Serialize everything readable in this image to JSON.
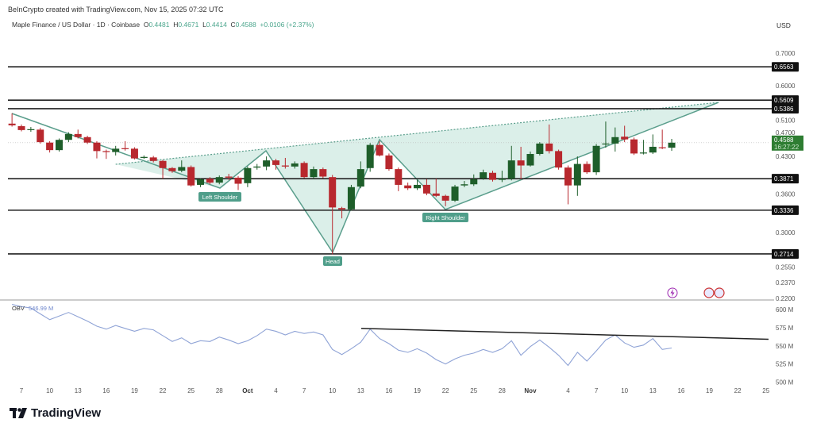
{
  "header": {
    "credit": "BeInCrypto created with TradingView.com, Nov 15, 2025 07:32 UTC",
    "symbol": "Maple Finance / US Dollar · 1D · Coinbase",
    "o_label": "O",
    "o": "0.4481",
    "h_label": "H",
    "h": "0.4671",
    "l_label": "L",
    "l": "0.4414",
    "c_label": "C",
    "c": "0.4588",
    "change": "+0.0106 (+2.37%)",
    "currency": "USD"
  },
  "footer": {
    "brand": "TradingView"
  },
  "colors": {
    "up": "#1e5e2a",
    "down": "#b8282e",
    "pattern": "#5a9e8c",
    "pattern_fill": "#cfe9e1",
    "obv": "#8fa3d6",
    "last_price_bg": "#2e7d32"
  },
  "icons": [
    "lightning-event-icon",
    "us-flag-icon",
    "us-flag-icon"
  ],
  "chart_data": [
    {
      "type": "candlestick",
      "scale": "log",
      "ylim": [
        0.22,
        0.72
      ],
      "y_ticks": [
        "0.7000",
        "0.6000",
        "0.5100",
        "0.4700",
        "0.4300",
        "0.3600",
        "0.3000",
        "0.2550",
        "0.2370",
        "0.2200"
      ],
      "x_ticks": [
        "7",
        "10",
        "13",
        "16",
        "19",
        "22",
        "25",
        "28",
        "Oct",
        "4",
        "7",
        "10",
        "13",
        "16",
        "19",
        "22",
        "25",
        "28",
        "Nov",
        "4",
        "7",
        "10",
        "13",
        "16",
        "19",
        "22",
        "25"
      ],
      "x_start": "2025-09-06",
      "x_end": "2025-11-15",
      "last_price": "0.4588",
      "countdown": "16:27:22",
      "horizontal_levels": [
        "0.6563",
        "0.5609",
        "0.5386",
        "0.3871",
        "0.3336",
        "0.2714"
      ],
      "pattern_labels": {
        "left_shoulder": "Left Shoulder",
        "head": "Head",
        "right_shoulder": "Right Shoulder"
      },
      "ohlc": [
        [
          0.502,
          0.527,
          0.495,
          0.498
        ],
        [
          0.496,
          0.5,
          0.484,
          0.487
        ],
        [
          0.487,
          0.494,
          0.483,
          0.489
        ],
        [
          0.488,
          0.492,
          0.457,
          0.46
        ],
        [
          0.459,
          0.462,
          0.438,
          0.443
        ],
        [
          0.443,
          0.468,
          0.44,
          0.465
        ],
        [
          0.465,
          0.482,
          0.46,
          0.478
        ],
        [
          0.478,
          0.488,
          0.468,
          0.471
        ],
        [
          0.471,
          0.474,
          0.456,
          0.459
        ],
        [
          0.459,
          0.462,
          0.426,
          0.441
        ],
        [
          0.441,
          0.444,
          0.425,
          0.439
        ],
        [
          0.439,
          0.452,
          0.432,
          0.446
        ],
        [
          0.447,
          0.462,
          0.442,
          0.445
        ],
        [
          0.446,
          0.449,
          0.424,
          0.426
        ],
        [
          0.427,
          0.432,
          0.425,
          0.429
        ],
        [
          0.428,
          0.431,
          0.418,
          0.421
        ],
        [
          0.421,
          0.423,
          0.387,
          0.407
        ],
        [
          0.407,
          0.409,
          0.398,
          0.401
        ],
        [
          0.402,
          0.422,
          0.399,
          0.409
        ],
        [
          0.409,
          0.412,
          0.373,
          0.375
        ],
        [
          0.376,
          0.388,
          0.372,
          0.386
        ],
        [
          0.387,
          0.39,
          0.377,
          0.38
        ],
        [
          0.38,
          0.393,
          0.377,
          0.39
        ],
        [
          0.391,
          0.396,
          0.385,
          0.389
        ],
        [
          0.389,
          0.392,
          0.367,
          0.378
        ],
        [
          0.379,
          0.41,
          0.372,
          0.407
        ],
        [
          0.408,
          0.415,
          0.404,
          0.41
        ],
        [
          0.41,
          0.43,
          0.403,
          0.422
        ],
        [
          0.422,
          0.425,
          0.404,
          0.413
        ],
        [
          0.412,
          0.427,
          0.406,
          0.41
        ],
        [
          0.41,
          0.42,
          0.406,
          0.416
        ],
        [
          0.417,
          0.42,
          0.388,
          0.39
        ],
        [
          0.39,
          0.41,
          0.387,
          0.405
        ],
        [
          0.405,
          0.408,
          0.388,
          0.391
        ],
        [
          0.39,
          0.394,
          0.271,
          0.338
        ],
        [
          0.337,
          0.339,
          0.321,
          0.335
        ],
        [
          0.335,
          0.376,
          0.333,
          0.372
        ],
        [
          0.373,
          0.42,
          0.37,
          0.405
        ],
        [
          0.407,
          0.458,
          0.4,
          0.454
        ],
        [
          0.454,
          0.462,
          0.43,
          0.432
        ],
        [
          0.432,
          0.436,
          0.402,
          0.405
        ],
        [
          0.405,
          0.408,
          0.365,
          0.376
        ],
        [
          0.375,
          0.38,
          0.367,
          0.37
        ],
        [
          0.37,
          0.385,
          0.367,
          0.376
        ],
        [
          0.376,
          0.386,
          0.358,
          0.361
        ],
        [
          0.361,
          0.387,
          0.355,
          0.357
        ],
        [
          0.357,
          0.359,
          0.34,
          0.349
        ],
        [
          0.349,
          0.376,
          0.347,
          0.373
        ],
        [
          0.375,
          0.383,
          0.372,
          0.377
        ],
        [
          0.377,
          0.395,
          0.374,
          0.386
        ],
        [
          0.388,
          0.404,
          0.385,
          0.399
        ],
        [
          0.398,
          0.402,
          0.382,
          0.385
        ],
        [
          0.385,
          0.402,
          0.381,
          0.387
        ],
        [
          0.387,
          0.452,
          0.384,
          0.422
        ],
        [
          0.422,
          0.45,
          0.386,
          0.412
        ],
        [
          0.412,
          0.44,
          0.41,
          0.435
        ],
        [
          0.435,
          0.46,
          0.432,
          0.457
        ],
        [
          0.457,
          0.5,
          0.436,
          0.441
        ],
        [
          0.441,
          0.444,
          0.404,
          0.408
        ],
        [
          0.408,
          0.412,
          0.343,
          0.375
        ],
        [
          0.375,
          0.43,
          0.357,
          0.415
        ],
        [
          0.415,
          0.42,
          0.396,
          0.399
        ],
        [
          0.399,
          0.456,
          0.394,
          0.452
        ],
        [
          0.455,
          0.507,
          0.448,
          0.457
        ],
        [
          0.457,
          0.493,
          0.44,
          0.471
        ],
        [
          0.472,
          0.497,
          0.46,
          0.466
        ],
        [
          0.466,
          0.47,
          0.433,
          0.436
        ],
        [
          0.436,
          0.465,
          0.434,
          0.438
        ],
        [
          0.438,
          0.477,
          0.435,
          0.45
        ],
        [
          0.449,
          0.488,
          0.445,
          0.447
        ],
        [
          0.4481,
          0.4671,
          0.4414,
          0.4588
        ]
      ]
    },
    {
      "type": "line",
      "name": "OBV",
      "value_label": "546.99 M",
      "unit": "M",
      "ylim": [
        500,
        610
      ],
      "y_ticks": [
        "600 M",
        "575 M",
        "550 M",
        "525 M",
        "500 M"
      ],
      "values": [
        607,
        604,
        602,
        594,
        586,
        591,
        596,
        590,
        584,
        577,
        573,
        578,
        574,
        570,
        574,
        572,
        564,
        556,
        561,
        553,
        557,
        556,
        562,
        558,
        553,
        557,
        564,
        573,
        570,
        565,
        570,
        567,
        569,
        565,
        545,
        538,
        546,
        555,
        573,
        560,
        553,
        544,
        541,
        546,
        540,
        531,
        525,
        532,
        537,
        540,
        545,
        541,
        546,
        557,
        537,
        549,
        558,
        548,
        537,
        523,
        541,
        529,
        543,
        558,
        565,
        554,
        548,
        551,
        560,
        545,
        546.99
      ],
      "trendline": {
        "from": [
          "2025-10-14",
          574
        ],
        "to": [
          "2025-11-24",
          559
        ]
      }
    }
  ]
}
